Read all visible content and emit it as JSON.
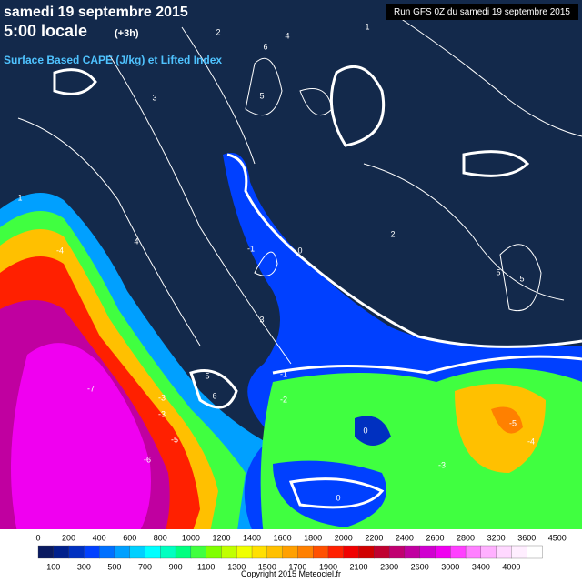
{
  "header": {
    "date": "samedi 19 septembre 2015",
    "time": "5:00 locale",
    "offset": "(+3h)",
    "parameter": "Surface Based CAPE (J/kg) et Lifted Index",
    "run": "Run GFS 0Z du samedi 19 septembre 2015"
  },
  "contour_labels": [
    "-4",
    "-7",
    "-6",
    "-5",
    "-3",
    "-3",
    "-1",
    "0",
    "0",
    "2",
    "4",
    "5",
    "6",
    "5",
    "3",
    "2",
    "1",
    "-5",
    "-4",
    "-3",
    "-2",
    "0",
    "-1",
    "4",
    "5",
    "6",
    "5",
    "3",
    "1"
  ],
  "legend": {
    "top_labels": [
      "0",
      "200",
      "400",
      "600",
      "800",
      "1000",
      "1200",
      "1400",
      "1600",
      "1800",
      "2000",
      "2200",
      "2400",
      "2600",
      "2800",
      "3200",
      "3600",
      "4500"
    ],
    "bottom_labels": [
      "100",
      "300",
      "500",
      "700",
      "900",
      "1100",
      "1300",
      "1500",
      "1700",
      "1900",
      "2100",
      "2300",
      "2600",
      "3000",
      "3400",
      "4000"
    ],
    "colors": [
      "#0a1a60",
      "#00208c",
      "#0030c0",
      "#0040ff",
      "#0070ff",
      "#00a0ff",
      "#00d0ff",
      "#00ffff",
      "#00ffc0",
      "#00ff80",
      "#40ff40",
      "#80ff00",
      "#c0ff00",
      "#f0ff00",
      "#ffe000",
      "#ffc000",
      "#ffa000",
      "#ff8000",
      "#ff5000",
      "#ff2000",
      "#f00000",
      "#d00000",
      "#c00030",
      "#c00070",
      "#c000a0",
      "#d000d0",
      "#f000f0",
      "#ff40ff",
      "#ff80ff",
      "#ffb0ff",
      "#ffd8ff",
      "#ffeeff",
      "#ffffff"
    ],
    "copyright": "Copyright 2015 Meteociel.fr"
  }
}
